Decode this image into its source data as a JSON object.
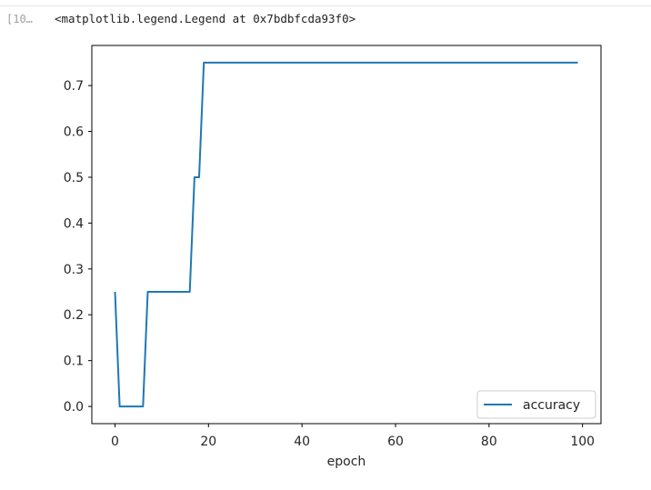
{
  "cell": {
    "prompt": "[10…",
    "output_text": "<matplotlib.legend.Legend at 0x7bdbfcda93f0>"
  },
  "chart_data": {
    "type": "line",
    "xlabel": "epoch",
    "ylabel": "",
    "xlim": [
      -4.95,
      103.95
    ],
    "ylim": [
      -0.0375,
      0.7875
    ],
    "xticks": [
      0,
      20,
      40,
      60,
      80,
      100
    ],
    "yticks": [
      0.0,
      0.1,
      0.2,
      0.3,
      0.4,
      0.5,
      0.6,
      0.7
    ],
    "xtick_labels": [
      "0",
      "20",
      "40",
      "60",
      "80",
      "100"
    ],
    "ytick_labels": [
      "0.0",
      "0.1",
      "0.2",
      "0.3",
      "0.4",
      "0.5",
      "0.6",
      "0.7"
    ],
    "legend_position": "lower-right",
    "series": [
      {
        "name": "accuracy",
        "color": "#1f77b4",
        "x": [
          0,
          1,
          2,
          3,
          4,
          5,
          6,
          7,
          8,
          9,
          10,
          11,
          12,
          13,
          14,
          15,
          16,
          17,
          18,
          19,
          99
        ],
        "y": [
          0.25,
          0.0,
          0.0,
          0.0,
          0.0,
          0.0,
          0.0,
          0.25,
          0.25,
          0.25,
          0.25,
          0.25,
          0.25,
          0.25,
          0.25,
          0.25,
          0.25,
          0.5,
          0.5,
          0.75,
          0.75
        ]
      }
    ]
  }
}
